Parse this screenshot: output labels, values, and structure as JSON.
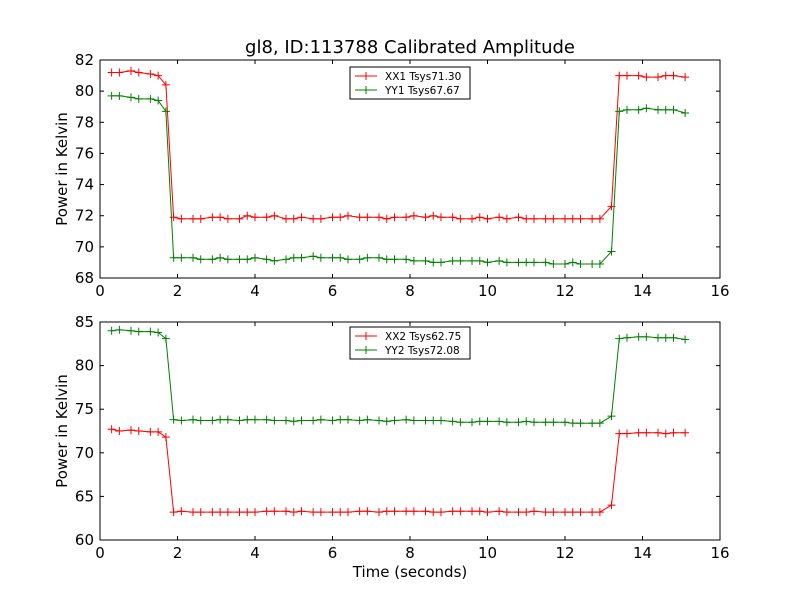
{
  "title": "gl8, ID:113788 Calibrated Amplitude",
  "chart_data": [
    {
      "type": "line",
      "ylabel": "Power in Kelvin",
      "xlabel": "",
      "xlim": [
        0,
        16
      ],
      "ylim": [
        68,
        82
      ],
      "xticks": [
        "0",
        "2",
        "4",
        "6",
        "8",
        "10",
        "12",
        "14",
        "16"
      ],
      "yticks": [
        "68",
        "70",
        "72",
        "74",
        "76",
        "78",
        "80",
        "82"
      ],
      "grid": false,
      "legend": "top-center",
      "x": [
        0.3,
        0.5,
        0.8,
        1.0,
        1.3,
        1.5,
        1.7,
        1.9,
        2.1,
        2.4,
        2.6,
        2.9,
        3.1,
        3.3,
        3.6,
        3.8,
        4.0,
        4.3,
        4.5,
        4.8,
        5.0,
        5.2,
        5.5,
        5.7,
        6.0,
        6.2,
        6.4,
        6.7,
        6.9,
        7.2,
        7.4,
        7.6,
        7.9,
        8.1,
        8.4,
        8.6,
        8.8,
        9.1,
        9.3,
        9.6,
        9.8,
        10.0,
        10.3,
        10.5,
        10.8,
        11.0,
        11.2,
        11.5,
        11.7,
        12.0,
        12.2,
        12.4,
        12.7,
        12.9,
        13.2,
        13.4,
        13.6,
        13.9,
        14.1,
        14.4,
        14.6,
        14.8,
        15.1
      ],
      "series": [
        {
          "name": "XX1 Tsys71.30",
          "color": "#ff0000",
          "values": [
            81.2,
            81.2,
            81.3,
            81.2,
            81.1,
            81.0,
            80.4,
            71.9,
            71.8,
            71.8,
            71.8,
            71.9,
            71.9,
            71.8,
            71.8,
            72.0,
            71.9,
            71.9,
            72.0,
            71.8,
            71.8,
            71.9,
            71.8,
            71.8,
            71.9,
            71.9,
            72.0,
            71.9,
            71.9,
            71.9,
            71.8,
            71.9,
            71.9,
            72.0,
            71.9,
            72.0,
            71.9,
            71.9,
            71.8,
            71.8,
            71.9,
            71.8,
            71.9,
            71.8,
            71.9,
            71.8,
            71.8,
            71.8,
            71.8,
            71.8,
            71.8,
            71.8,
            71.8,
            71.8,
            72.6,
            81.0,
            81.0,
            81.0,
            80.9,
            80.9,
            81.0,
            81.0,
            80.9
          ]
        },
        {
          "name": "YY1 Tsys67.67",
          "color": "#008000",
          "values": [
            79.7,
            79.7,
            79.6,
            79.5,
            79.5,
            79.4,
            78.7,
            69.3,
            69.3,
            69.3,
            69.2,
            69.2,
            69.3,
            69.2,
            69.2,
            69.2,
            69.3,
            69.2,
            69.1,
            69.2,
            69.3,
            69.3,
            69.4,
            69.3,
            69.3,
            69.3,
            69.2,
            69.2,
            69.3,
            69.3,
            69.2,
            69.2,
            69.2,
            69.1,
            69.1,
            69.0,
            69.0,
            69.1,
            69.1,
            69.1,
            69.1,
            69.0,
            69.1,
            69.0,
            69.0,
            69.0,
            69.0,
            69.0,
            68.9,
            68.9,
            69.0,
            68.9,
            68.9,
            68.9,
            69.7,
            78.7,
            78.8,
            78.8,
            78.9,
            78.8,
            78.8,
            78.8,
            78.6
          ]
        }
      ]
    },
    {
      "type": "line",
      "ylabel": "Power in Kelvin",
      "xlabel": "Time (seconds)",
      "xlim": [
        0,
        16
      ],
      "ylim": [
        60,
        85
      ],
      "xticks": [
        "0",
        "2",
        "4",
        "6",
        "8",
        "10",
        "12",
        "14",
        "16"
      ],
      "yticks": [
        "60",
        "65",
        "70",
        "75",
        "80",
        "85"
      ],
      "grid": false,
      "legend": "top-center",
      "x": [
        0.3,
        0.5,
        0.8,
        1.0,
        1.3,
        1.5,
        1.7,
        1.9,
        2.1,
        2.4,
        2.6,
        2.9,
        3.1,
        3.3,
        3.6,
        3.8,
        4.0,
        4.3,
        4.5,
        4.8,
        5.0,
        5.2,
        5.5,
        5.7,
        6.0,
        6.2,
        6.4,
        6.7,
        6.9,
        7.2,
        7.4,
        7.6,
        7.9,
        8.1,
        8.4,
        8.6,
        8.8,
        9.1,
        9.3,
        9.6,
        9.8,
        10.0,
        10.3,
        10.5,
        10.8,
        11.0,
        11.2,
        11.5,
        11.7,
        12.0,
        12.2,
        12.4,
        12.7,
        12.9,
        13.2,
        13.4,
        13.6,
        13.9,
        14.1,
        14.4,
        14.6,
        14.8,
        15.1
      ],
      "series": [
        {
          "name": "XX2 Tsys62.75",
          "color": "#ff0000",
          "values": [
            72.7,
            72.5,
            72.6,
            72.5,
            72.4,
            72.4,
            71.8,
            63.2,
            63.3,
            63.2,
            63.2,
            63.2,
            63.2,
            63.2,
            63.2,
            63.2,
            63.2,
            63.3,
            63.3,
            63.3,
            63.2,
            63.3,
            63.2,
            63.2,
            63.2,
            63.2,
            63.2,
            63.3,
            63.3,
            63.2,
            63.3,
            63.3,
            63.3,
            63.3,
            63.3,
            63.2,
            63.2,
            63.3,
            63.3,
            63.3,
            63.3,
            63.2,
            63.3,
            63.2,
            63.2,
            63.2,
            63.3,
            63.2,
            63.2,
            63.2,
            63.2,
            63.2,
            63.2,
            63.2,
            64.0,
            72.2,
            72.2,
            72.3,
            72.3,
            72.3,
            72.2,
            72.3,
            72.3
          ]
        },
        {
          "name": "YY2 Tsys72.08",
          "color": "#008000",
          "values": [
            84.0,
            84.1,
            84.0,
            83.9,
            83.9,
            83.8,
            83.1,
            73.8,
            73.7,
            73.8,
            73.7,
            73.7,
            73.8,
            73.8,
            73.7,
            73.8,
            73.8,
            73.8,
            73.7,
            73.7,
            73.6,
            73.7,
            73.7,
            73.8,
            73.7,
            73.8,
            73.8,
            73.7,
            73.8,
            73.7,
            73.6,
            73.7,
            73.8,
            73.7,
            73.7,
            73.7,
            73.7,
            73.6,
            73.5,
            73.5,
            73.6,
            73.6,
            73.6,
            73.5,
            73.5,
            73.6,
            73.5,
            73.5,
            73.5,
            73.5,
            73.4,
            73.4,
            73.4,
            73.4,
            74.2,
            83.1,
            83.2,
            83.3,
            83.3,
            83.2,
            83.2,
            83.2,
            83.0
          ]
        }
      ]
    }
  ]
}
